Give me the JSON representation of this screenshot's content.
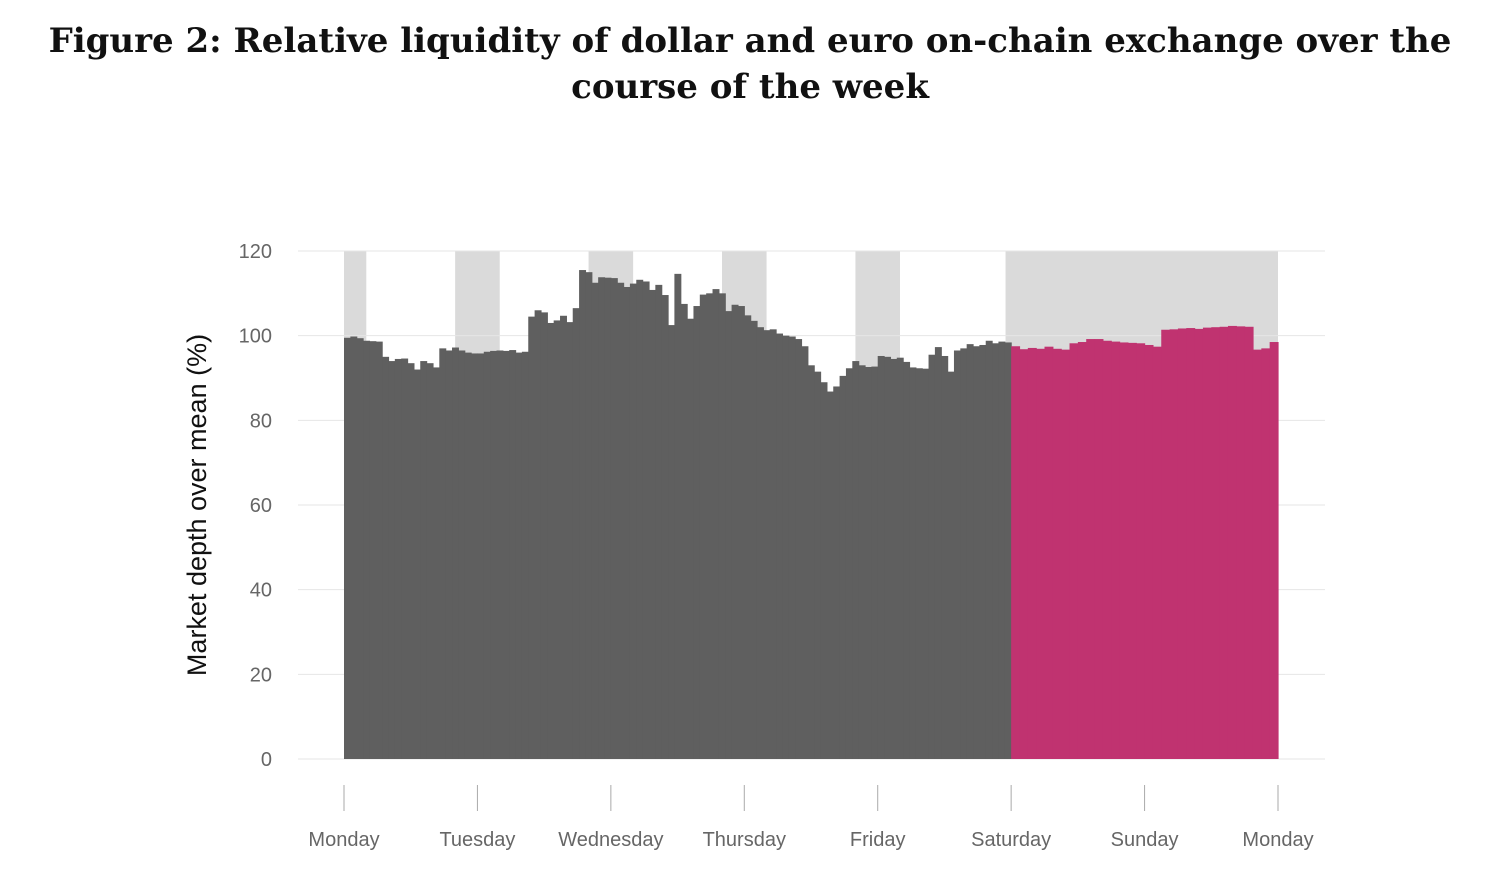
{
  "figure": {
    "title_line1": "Figure 2: Relative liquidity of dollar and euro on-chain exchange over the",
    "title_line2": "course of the week"
  },
  "colors": {
    "weekday_bar": "#5f5f5f",
    "weekend_bar": "#c03370",
    "shade": "#dadada",
    "grid": "#e6e6e6"
  },
  "chart_data": {
    "type": "bar",
    "ylabel": "Market depth over mean (%)",
    "ylim": [
      0,
      120
    ],
    "yticks": [
      0,
      20,
      40,
      60,
      80,
      100,
      120
    ],
    "xlim": [
      0,
      7
    ],
    "x_ticks": [
      {
        "x": 0,
        "label": "Monday"
      },
      {
        "x": 1,
        "label": "Tuesday"
      },
      {
        "x": 2,
        "label": "Wednesday"
      },
      {
        "x": 3,
        "label": "Thursday"
      },
      {
        "x": 4,
        "label": "Friday"
      },
      {
        "x": 5,
        "label": "Saturday"
      },
      {
        "x": 6,
        "label": "Sunday"
      },
      {
        "x": 7,
        "label": "Monday"
      }
    ],
    "grid": true,
    "shaded_ranges": [
      [
        0,
        0.167
      ],
      [
        0.833,
        1.167
      ],
      [
        1.833,
        2.167
      ],
      [
        2.833,
        3.167
      ],
      [
        3.833,
        4.167
      ],
      [
        4.958,
        7
      ]
    ],
    "series": [
      {
        "segment": "weekday",
        "x_start": 0,
        "x_end": 5,
        "values": [
          99.5,
          99.8,
          99.4,
          98.8,
          98.7,
          98.6,
          95,
          94,
          94.5,
          94.6,
          93.5,
          92,
          94,
          93.5,
          92.5,
          97,
          96.5,
          97.2,
          96.5,
          96,
          95.8,
          95.8,
          96.2,
          96.4,
          96.5,
          96.4,
          96.6,
          96,
          96.2,
          104.5,
          106,
          105.5,
          103,
          103.6,
          104.7,
          103.2,
          106.5,
          115.5,
          115,
          112.5,
          113.8,
          113.7,
          113.6,
          112.5,
          111.5,
          112.3,
          113.2,
          112.8,
          110.8,
          112,
          109.6,
          102.5,
          114.6,
          107.5,
          104,
          107,
          109.7,
          110,
          111,
          110,
          105.8,
          107.3,
          107,
          104.8,
          103.5,
          102,
          101.3,
          101.5,
          100.5,
          100,
          99.8,
          99.2,
          97.5,
          93,
          91.5,
          89,
          86.8,
          88,
          90.5,
          92.3,
          94,
          93,
          92.6,
          92.7,
          95.2,
          95,
          94.5,
          94.8,
          93.8,
          92.5,
          92.3,
          92.2,
          95.5,
          97.3,
          95.2,
          91.5,
          96.5,
          97,
          98,
          97.5,
          97.8,
          98.8,
          98.2,
          98.6,
          98.4
        ]
      },
      {
        "segment": "weekend",
        "x_start": 5,
        "x_end": 7,
        "values": [
          97.5,
          96.8,
          97.1,
          96.9,
          97.4,
          96.9,
          96.7,
          98.2,
          98.5,
          99.2,
          99.2,
          98.8,
          98.6,
          98.4,
          98.3,
          98.2,
          97.8,
          97.4,
          101.4,
          101.5,
          101.7,
          101.8,
          101.6,
          101.9,
          102,
          102.1,
          102.3,
          102.2,
          102.1,
          96.7,
          97,
          98.5
        ]
      }
    ]
  }
}
